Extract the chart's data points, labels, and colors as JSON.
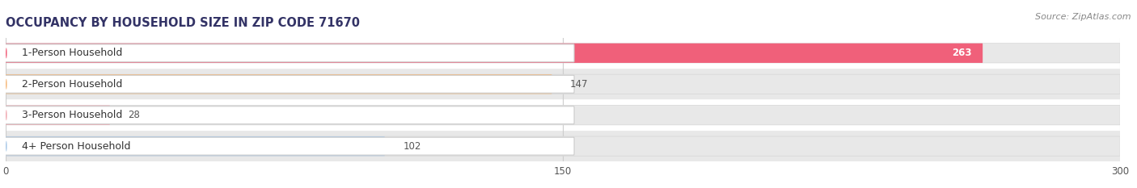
{
  "title": "OCCUPANCY BY HOUSEHOLD SIZE IN ZIP CODE 71670",
  "source": "Source: ZipAtlas.com",
  "categories": [
    "1-Person Household",
    "2-Person Household",
    "3-Person Household",
    "4+ Person Household"
  ],
  "values": [
    263,
    147,
    28,
    102
  ],
  "bar_colors": [
    "#f0607a",
    "#f5b87a",
    "#f0a8b0",
    "#a8c8e8"
  ],
  "bar_bg_color": "#f0f0f0",
  "stripe_color": "#e8e8e8",
  "xlim": [
    0,
    300
  ],
  "xticks": [
    0,
    150,
    300
  ],
  "title_fontsize": 10.5,
  "source_fontsize": 8,
  "label_fontsize": 9,
  "value_fontsize": 8.5,
  "background_color": "#ffffff"
}
